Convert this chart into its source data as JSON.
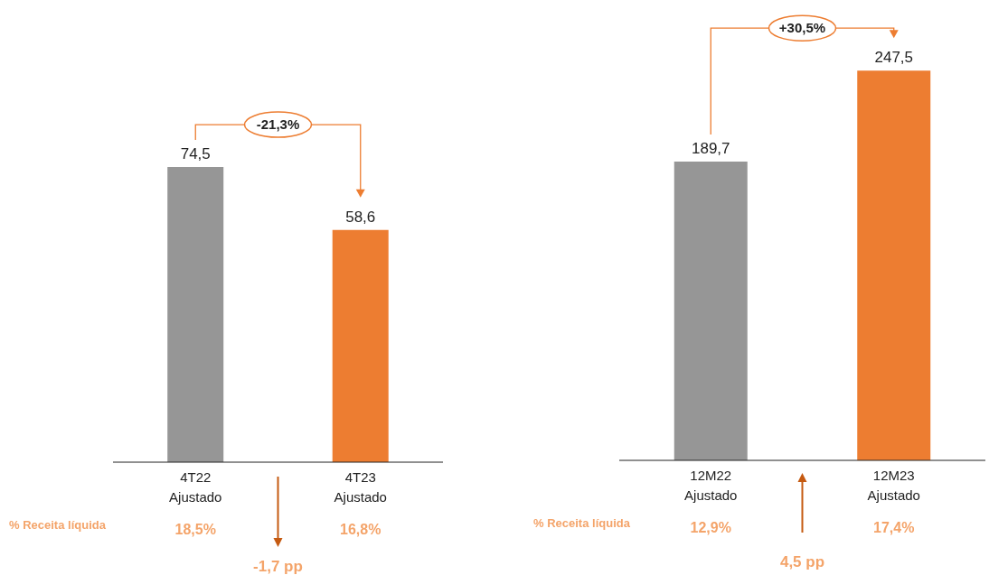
{
  "chart_data": [
    {
      "type": "bar",
      "categories": [
        "4T22\nAjustado",
        "4T23\nAjustado"
      ],
      "values": [
        74.5,
        58.6
      ],
      "value_labels": [
        "74,5",
        "58,6"
      ],
      "colors": [
        "#969696",
        "#ed7d31"
      ],
      "annotations": [
        "-21,3%",
        "% Receita líquida",
        "18,5%",
        "16,8%",
        "-1,7 pp"
      ]
    },
    {
      "type": "bar",
      "categories": [
        "12M22\nAjustado",
        "12M23\nAjustado"
      ],
      "values": [
        189.7,
        247.5
      ],
      "value_labels": [
        "189,7",
        "247,5"
      ],
      "colors": [
        "#969696",
        "#ed7d31"
      ],
      "annotations": [
        "+30,5%",
        "% Receita líquida",
        "12,9%",
        "17,4%",
        "4,5 pp"
      ]
    }
  ]
}
